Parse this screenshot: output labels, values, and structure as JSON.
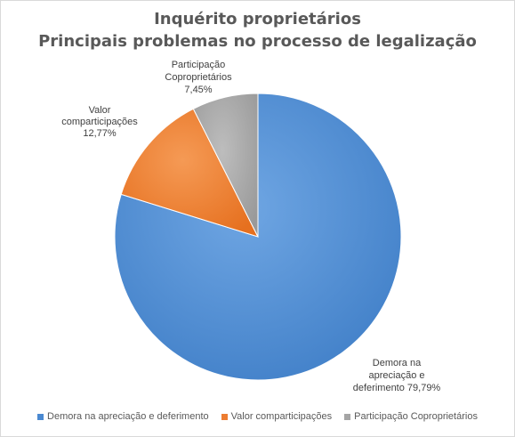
{
  "chart_data": {
    "type": "pie",
    "title": [
      "Inquérito proprietários",
      "Principais  problemas  no  processo  de legalização"
    ],
    "slices": [
      {
        "label": "Demora na apreciação e deferimento",
        "value": 79.79,
        "display": "79,79%",
        "color": "#4a89d1",
        "datalabel": [
          "Demora na",
          "apreciação e",
          "deferimento 79,79%"
        ]
      },
      {
        "label": "Valor comparticipações",
        "value": 12.77,
        "display": "12,77%",
        "color": "#ed7d31",
        "datalabel": [
          "Valor",
          "comparticipações",
          "12,77%"
        ]
      },
      {
        "label": "Participação Coproprietários",
        "value": 7.45,
        "display": "7,45%",
        "color": "#a5a5a5",
        "datalabel": [
          "Participação",
          "Coproprietários",
          "7,45%"
        ]
      }
    ],
    "legend_position": "bottom"
  }
}
